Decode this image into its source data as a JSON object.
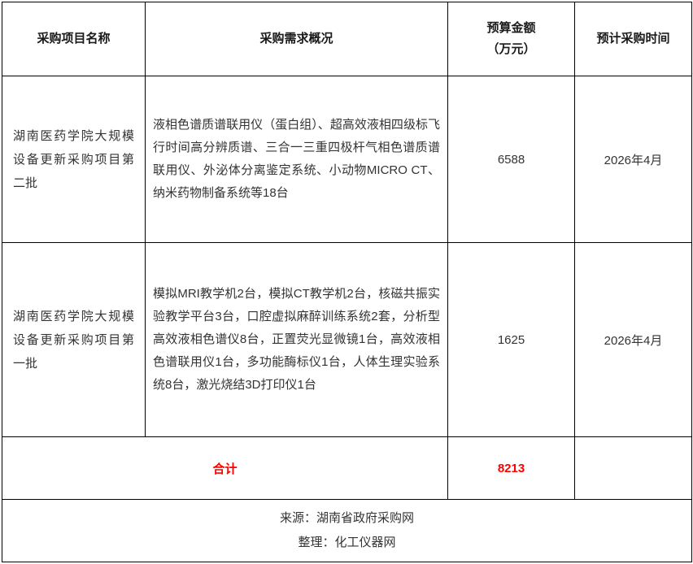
{
  "columns": {
    "project": "采购项目名称",
    "overview": "采购需求概况",
    "budget_line1": "预算金额",
    "budget_line2": "（万元）",
    "time": "预计采购时间"
  },
  "rows": [
    {
      "project": "湖南医药学院大规模设备更新采购项目第二批",
      "overview": "液相色谱质谱联用仪（蛋白组）、超高效液相四级标飞行时间高分辨质谱、三合一三重四极杆气相色谱质谱联用仪、外泌体分离鉴定系统、小动物MICRO CT、纳米药物制备系统等18台",
      "budget": "6588",
      "time": "2026年4月"
    },
    {
      "project": "湖南医药学院大规模设备更新采购项目第一批",
      "overview": "模拟MRI教学机2台，模拟CT教学机2台，核磁共振实验教学平台3台，口腔虚拟麻醉训练系统2套，分析型高效液相色谱仪8台，正置荧光显微镜1台，高效液相色谱联用仪1台，多功能酶标仪1台，人体生理实验系统8台，激光烧结3D打印仪1台",
      "budget": "1625",
      "time": "2026年4月"
    }
  ],
  "total": {
    "label": "合计",
    "budget": "8213"
  },
  "footer": {
    "source": "来源：湖南省政府采购网",
    "compiler": "整理：化工仪器网"
  },
  "colors": {
    "accent_red": "#ff0000",
    "text": "#333333",
    "border": "#000000"
  }
}
